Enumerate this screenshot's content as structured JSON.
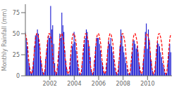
{
  "chart_data": {
    "type": "bar",
    "title": "",
    "ylabel": "Monthly Rainfall (mm)",
    "x": [
      2000.0,
      2000.0833,
      2000.1667,
      2000.25,
      2000.3333,
      2000.4167,
      2000.5,
      2000.5833,
      2000.6667,
      2000.75,
      2000.8333,
      2000.9167,
      2001.0,
      2001.0833,
      2001.1667,
      2001.25,
      2001.3333,
      2001.4167,
      2001.5,
      2001.5833,
      2001.6667,
      2001.75,
      2001.8333,
      2001.9167,
      2002.0,
      2002.0833,
      2002.1667,
      2002.25,
      2002.3333,
      2002.4167,
      2002.5,
      2002.5833,
      2002.6667,
      2002.75,
      2002.8333,
      2002.9167,
      2003.0,
      2003.0833,
      2003.1667,
      2003.25,
      2003.3333,
      2003.4167,
      2003.5,
      2003.5833,
      2003.6667,
      2003.75,
      2003.8333,
      2003.9167,
      2004.0,
      2004.0833,
      2004.1667,
      2004.25,
      2004.3333,
      2004.4167,
      2004.5,
      2004.5833,
      2004.6667,
      2004.75,
      2004.8333,
      2004.9167,
      2005.0,
      2005.0833,
      2005.1667,
      2005.25,
      2005.3333,
      2005.4167,
      2005.5,
      2005.5833,
      2005.6667,
      2005.75,
      2005.8333,
      2005.9167,
      2006.0,
      2006.0833,
      2006.1667,
      2006.25,
      2006.3333,
      2006.4167,
      2006.5,
      2006.5833,
      2006.6667,
      2006.75,
      2006.8333,
      2006.9167,
      2007.0,
      2007.0833,
      2007.1667,
      2007.25,
      2007.3333,
      2007.4167,
      2007.5,
      2007.5833,
      2007.6667,
      2007.75,
      2007.8333,
      2007.9167,
      2008.0,
      2008.0833,
      2008.1667,
      2008.25,
      2008.3333,
      2008.4167,
      2008.5,
      2008.5833,
      2008.6667,
      2008.75,
      2008.8333,
      2008.9167,
      2009.0,
      2009.0833,
      2009.1667,
      2009.25,
      2009.3333,
      2009.4167,
      2009.5,
      2009.5833,
      2009.6667,
      2009.75,
      2009.8333,
      2009.9167,
      2010.0,
      2010.0833,
      2010.1667,
      2010.25,
      2010.3333,
      2010.4167,
      2010.5,
      2010.5833,
      2010.6667,
      2010.75,
      2010.8333,
      2010.9167,
      2011.0,
      2011.0833,
      2011.1667,
      2011.25,
      2011.3333,
      2011.4167,
      2011.5,
      2011.5833,
      2011.6667,
      2011.75,
      2011.8333,
      2011.9167
    ],
    "series": [
      {
        "type": "bar",
        "color": "#0000CC",
        "values": [
          52,
          45,
          35,
          20,
          12,
          5,
          3,
          8,
          18,
          35,
          48,
          50,
          55,
          50,
          38,
          22,
          15,
          5,
          2,
          5,
          20,
          30,
          42,
          48,
          45,
          83,
          55,
          60,
          38,
          15,
          5,
          3,
          12,
          30,
          50,
          45,
          75,
          60,
          52,
          30,
          18,
          8,
          2,
          2,
          12,
          25,
          35,
          38,
          52,
          40,
          30,
          18,
          10,
          3,
          2,
          3,
          15,
          28,
          38,
          45,
          55,
          52,
          42,
          35,
          22,
          8,
          3,
          5,
          18,
          35,
          45,
          45,
          45,
          38,
          30,
          18,
          12,
          5,
          3,
          5,
          15,
          32,
          42,
          38,
          45,
          35,
          28,
          20,
          10,
          5,
          2,
          3,
          18,
          35,
          55,
          48,
          35,
          28,
          22,
          15,
          8,
          3,
          2,
          3,
          15,
          28,
          42,
          42,
          38,
          32,
          35,
          28,
          15,
          6,
          2,
          3,
          18,
          32,
          52,
          62,
          32,
          55,
          42,
          28,
          18,
          6,
          2,
          3,
          18,
          32,
          42,
          38,
          35,
          28,
          22,
          15,
          10,
          4,
          2,
          3,
          15,
          28,
          38,
          28
        ]
      },
      {
        "type": "line",
        "color": "#FF0000",
        "line_style": "dashed",
        "values": [
          50,
          45,
          38,
          22,
          12,
          5,
          2,
          5,
          18,
          32,
          45,
          50,
          50,
          45,
          38,
          22,
          12,
          5,
          2,
          5,
          18,
          32,
          45,
          50,
          50,
          45,
          38,
          22,
          12,
          5,
          2,
          5,
          18,
          32,
          45,
          50,
          50,
          45,
          38,
          22,
          12,
          5,
          2,
          5,
          18,
          32,
          45,
          50,
          50,
          45,
          38,
          22,
          12,
          5,
          2,
          5,
          18,
          32,
          45,
          50,
          50,
          45,
          38,
          22,
          12,
          5,
          2,
          5,
          18,
          32,
          45,
          50,
          50,
          45,
          38,
          22,
          12,
          5,
          2,
          5,
          18,
          32,
          45,
          50,
          50,
          45,
          38,
          22,
          12,
          5,
          2,
          5,
          18,
          32,
          45,
          50,
          50,
          45,
          38,
          22,
          12,
          5,
          2,
          5,
          18,
          32,
          45,
          50,
          50,
          45,
          38,
          22,
          12,
          5,
          2,
          5,
          18,
          32,
          45,
          50,
          50,
          45,
          38,
          22,
          12,
          5,
          2,
          5,
          18,
          32,
          45,
          50,
          50,
          45,
          38,
          22,
          12,
          5,
          2,
          5,
          18,
          32,
          45,
          50
        ]
      }
    ],
    "xlim": [
      2000.0,
      2012.0
    ],
    "xticks": [
      2002,
      2004,
      2006,
      2008,
      2010
    ],
    "ylim": [
      0,
      85
    ],
    "yticks": [
      0,
      25,
      50,
      75
    ],
    "grid": false
  }
}
